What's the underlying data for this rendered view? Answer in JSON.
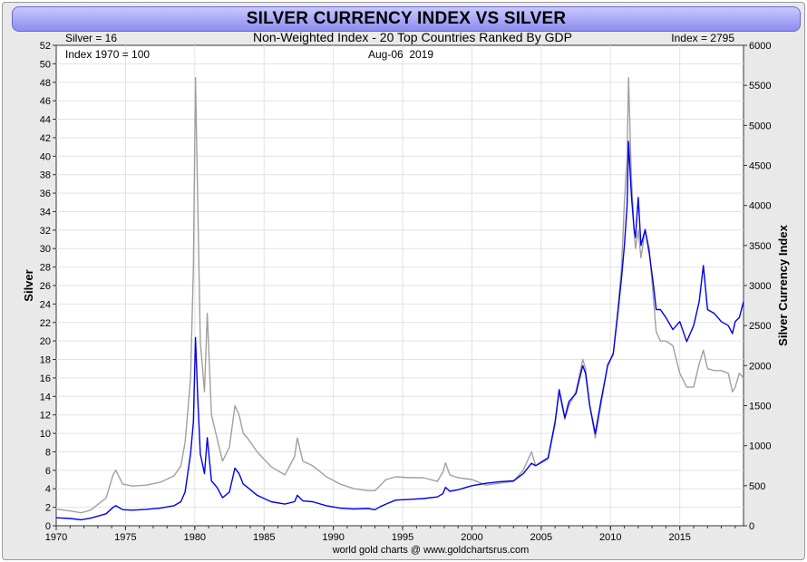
{
  "chart_data": {
    "type": "line",
    "title": "SILVER CURRENCY INDEX VS SILVER",
    "subtitle": "Non-Weighted Index - 20 Top Countries Ranked By GDP",
    "date": "Aug-06  2019",
    "annotations": {
      "silver_current": "Silver = 16",
      "index_current": "Index = 2795",
      "index_base": "Index 1970 = 100"
    },
    "footer": "world gold charts @ www.goldchartsrus.com",
    "xlabel": "",
    "y_left_label": "Silver",
    "y_right_label": "Silver Currency Index",
    "xlim": [
      1970,
      2019.6
    ],
    "ylim_left": [
      0,
      52
    ],
    "ylim_right": [
      0,
      6000
    ],
    "x_ticks": [
      "1970",
      "1975",
      "1980",
      "1985",
      "1990",
      "1995",
      "2000",
      "2005",
      "2010",
      "2015"
    ],
    "y_left_ticks": [
      "0",
      "2",
      "4",
      "6",
      "8",
      "10",
      "12",
      "14",
      "16",
      "18",
      "20",
      "22",
      "24",
      "26",
      "28",
      "30",
      "32",
      "34",
      "36",
      "38",
      "40",
      "42",
      "44",
      "46",
      "48",
      "50",
      "52"
    ],
    "y_right_ticks": [
      "0",
      "500",
      "1000",
      "1500",
      "2000",
      "2500",
      "3000",
      "3500",
      "4000",
      "4500",
      "5000",
      "5500",
      "6000"
    ],
    "grid": true,
    "colors": {
      "silver": "#a0a0a0",
      "index": "#0000ee"
    },
    "series": [
      {
        "key": "silver",
        "axis": "left",
        "x": [
          1970.0,
          1971.0,
          1971.8,
          1972.5,
          1973.0,
          1973.6,
          1974.1,
          1974.3,
          1974.8,
          1975.5,
          1976.5,
          1977.5,
          1978.5,
          1979.0,
          1979.3,
          1979.7,
          1979.9,
          1980.05,
          1980.2,
          1980.4,
          1980.7,
          1980.9,
          1981.2,
          1981.6,
          1982.0,
          1982.5,
          1982.9,
          1983.2,
          1983.5,
          1983.8,
          1984.5,
          1985.5,
          1986.5,
          1987.2,
          1987.4,
          1987.8,
          1988.5,
          1989.5,
          1990.5,
          1991.5,
          1992.5,
          1993.0,
          1993.4,
          1993.8,
          1994.5,
          1995.5,
          1996.5,
          1997.5,
          1997.9,
          1998.1,
          1998.4,
          1999.0,
          2000.0,
          2001.0,
          2002.0,
          2003.0,
          2003.7,
          2004.3,
          2004.6,
          2005.5,
          2006.0,
          2006.3,
          2006.7,
          2007.0,
          2007.5,
          2008.0,
          2008.2,
          2008.5,
          2008.9,
          2009.3,
          2009.8,
          2010.2,
          2010.5,
          2010.8,
          2011.0,
          2011.2,
          2011.3,
          2011.5,
          2011.7,
          2011.8,
          2012.0,
          2012.2,
          2012.5,
          2012.8,
          2013.1,
          2013.3,
          2013.6,
          2014.0,
          2014.5,
          2015.0,
          2015.5,
          2016.0,
          2016.4,
          2016.7,
          2017.0,
          2017.5,
          2018.0,
          2018.5,
          2018.8,
          2019.0,
          2019.3,
          2019.6
        ],
        "y": [
          1.8,
          1.6,
          1.4,
          1.7,
          2.3,
          3.0,
          5.5,
          6.0,
          4.5,
          4.3,
          4.4,
          4.7,
          5.4,
          6.5,
          9.0,
          16.0,
          28.0,
          48.5,
          36.0,
          20.0,
          14.5,
          23.0,
          12.0,
          9.5,
          7.0,
          8.5,
          13.0,
          12.0,
          10.0,
          9.5,
          8.0,
          6.4,
          5.5,
          7.5,
          9.5,
          7.0,
          6.5,
          5.3,
          4.5,
          4.0,
          3.8,
          3.8,
          4.4,
          5.0,
          5.3,
          5.2,
          5.2,
          4.8,
          5.8,
          6.8,
          5.5,
          5.2,
          5.0,
          4.4,
          4.6,
          4.8,
          6.0,
          8.0,
          6.5,
          7.2,
          11.0,
          14.5,
          11.5,
          13.0,
          14.5,
          18.0,
          17.0,
          13.0,
          9.5,
          13.0,
          17.5,
          18.5,
          23.0,
          28.0,
          35.0,
          40.0,
          48.5,
          38.0,
          32.0,
          30.0,
          32.0,
          29.0,
          32.0,
          30.0,
          24.5,
          21.0,
          20.0,
          20.0,
          19.5,
          16.5,
          15.0,
          15.0,
          17.5,
          19.0,
          17.0,
          16.8,
          16.8,
          16.5,
          14.5,
          15.0,
          16.5,
          16.0
        ]
      },
      {
        "key": "index",
        "axis": "right",
        "x": [
          1970.0,
          1971.0,
          1971.8,
          1972.5,
          1973.0,
          1973.6,
          1974.1,
          1974.3,
          1974.8,
          1975.5,
          1976.5,
          1977.5,
          1978.5,
          1979.0,
          1979.3,
          1979.7,
          1979.9,
          1980.05,
          1980.2,
          1980.4,
          1980.7,
          1980.9,
          1981.2,
          1981.6,
          1982.0,
          1982.5,
          1982.9,
          1983.2,
          1983.5,
          1983.8,
          1984.5,
          1985.5,
          1986.5,
          1987.2,
          1987.4,
          1987.8,
          1988.5,
          1989.5,
          1990.5,
          1991.5,
          1992.5,
          1993.0,
          1993.4,
          1993.8,
          1994.5,
          1995.5,
          1996.5,
          1997.5,
          1997.9,
          1998.1,
          1998.4,
          1999.0,
          2000.0,
          2001.0,
          2002.0,
          2003.0,
          2003.7,
          2004.3,
          2004.6,
          2005.5,
          2006.0,
          2006.3,
          2006.7,
          2007.0,
          2007.5,
          2008.0,
          2008.2,
          2008.5,
          2008.9,
          2009.3,
          2009.8,
          2010.2,
          2010.5,
          2010.8,
          2011.0,
          2011.2,
          2011.3,
          2011.5,
          2011.7,
          2011.8,
          2012.0,
          2012.2,
          2012.5,
          2012.8,
          2013.1,
          2013.3,
          2013.6,
          2014.0,
          2014.5,
          2015.0,
          2015.5,
          2016.0,
          2016.4,
          2016.7,
          2017.0,
          2017.5,
          2018.0,
          2018.5,
          2018.8,
          2019.0,
          2019.3,
          2019.6
        ],
        "y": [
          100,
          90,
          75,
          95,
          120,
          150,
          230,
          250,
          200,
          195,
          205,
          220,
          250,
          300,
          420,
          900,
          1300,
          2350,
          1650,
          900,
          650,
          1100,
          560,
          480,
          350,
          420,
          720,
          650,
          520,
          480,
          380,
          300,
          270,
          300,
          380,
          310,
          300,
          250,
          220,
          210,
          215,
          200,
          240,
          270,
          320,
          330,
          340,
          360,
          400,
          480,
          430,
          450,
          500,
          530,
          550,
          560,
          650,
          780,
          750,
          850,
          1300,
          1700,
          1350,
          1550,
          1650,
          2000,
          1900,
          1500,
          1150,
          1550,
          2000,
          2150,
          2600,
          3100,
          3500,
          4000,
          4800,
          4150,
          3700,
          3600,
          4100,
          3500,
          3700,
          3400,
          3000,
          2700,
          2700,
          2600,
          2450,
          2550,
          2300,
          2500,
          2800,
          3250,
          2700,
          2650,
          2550,
          2500,
          2400,
          2550,
          2600,
          2800
        ]
      }
    ]
  }
}
